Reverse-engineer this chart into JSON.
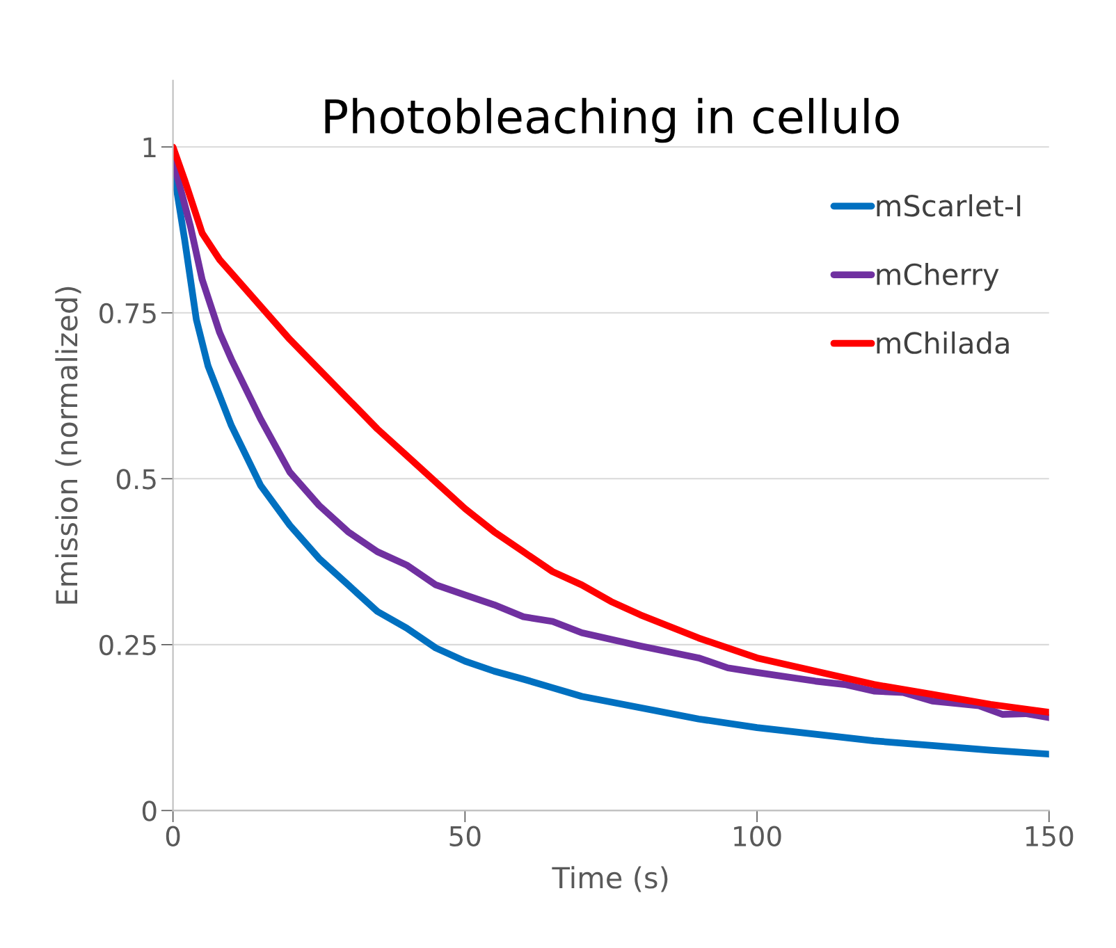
{
  "chart_data": {
    "type": "line",
    "title": "Photobleaching in cellulo",
    "xlabel": "Time (s)",
    "ylabel": "Emission (normalized)",
    "xlim": [
      0,
      150
    ],
    "xticks": [
      0,
      50,
      100,
      150
    ],
    "ylim": [
      0,
      1.1
    ],
    "yticks": [
      0,
      0.25,
      0.5,
      0.75,
      1
    ],
    "grid": "y",
    "legend": "top right",
    "marker": "none",
    "line_style": "solid",
    "series": [
      {
        "name": "mScarlet-I",
        "color": "#0070c0",
        "x": [
          0,
          2,
          4,
          6,
          10,
          15,
          20,
          25,
          30,
          35,
          40,
          45,
          50,
          55,
          60,
          65,
          70,
          80,
          90,
          100,
          110,
          120,
          130,
          140,
          150
        ],
        "values": [
          0.97,
          0.86,
          0.74,
          0.67,
          0.58,
          0.49,
          0.43,
          0.38,
          0.34,
          0.3,
          0.275,
          0.245,
          0.225,
          0.21,
          0.198,
          0.185,
          0.172,
          0.155,
          0.138,
          0.125,
          0.115,
          0.105,
          0.098,
          0.091,
          0.085
        ]
      },
      {
        "name": "mCherry",
        "color": "#7030a0",
        "x": [
          0,
          3,
          5,
          8,
          10,
          15,
          20,
          25,
          30,
          35,
          40,
          45,
          50,
          55,
          60,
          65,
          70,
          75,
          80,
          90,
          95,
          100,
          110,
          115,
          120,
          125,
          130,
          138,
          142,
          146,
          150
        ],
        "values": [
          0.98,
          0.88,
          0.8,
          0.72,
          0.68,
          0.59,
          0.51,
          0.46,
          0.42,
          0.39,
          0.37,
          0.34,
          0.325,
          0.31,
          0.292,
          0.285,
          0.268,
          0.258,
          0.248,
          0.23,
          0.215,
          0.208,
          0.195,
          0.19,
          0.18,
          0.178,
          0.165,
          0.158,
          0.145,
          0.146,
          0.14
        ]
      },
      {
        "name": "mChilada",
        "color": "#ff0000",
        "x": [
          0,
          2,
          5,
          8,
          10,
          15,
          20,
          25,
          30,
          35,
          40,
          45,
          50,
          55,
          60,
          65,
          70,
          75,
          80,
          90,
          100,
          110,
          120,
          130,
          140,
          150
        ],
        "values": [
          1.0,
          0.95,
          0.87,
          0.83,
          0.81,
          0.76,
          0.71,
          0.665,
          0.62,
          0.575,
          0.535,
          0.495,
          0.455,
          0.42,
          0.39,
          0.36,
          0.34,
          0.315,
          0.295,
          0.26,
          0.23,
          0.21,
          0.19,
          0.175,
          0.16,
          0.148
        ]
      }
    ]
  }
}
